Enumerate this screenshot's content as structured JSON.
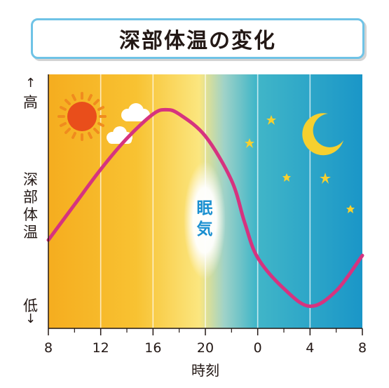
{
  "title": "深部体温の変化",
  "y_axis": {
    "high_label": "高",
    "low_label": "低",
    "label_chars": [
      "深",
      "部",
      "体",
      "温"
    ],
    "up_arrow": "↑",
    "down_arrow": "↓"
  },
  "x_axis": {
    "label": "時刻",
    "ticks": [
      "8",
      "12",
      "16",
      "20",
      "0",
      "4",
      "8"
    ]
  },
  "sleep_label": "眠\n気",
  "colors": {
    "day_orange": "#f6b221",
    "day_yellow": "#fbe67f",
    "night_teal": "#41b6c8",
    "night_blue": "#1a96c8",
    "curve": "#d6337f",
    "sun": "#e94e1b",
    "sun_rays": "#f08b1e",
    "moon_star": "#f6d02f",
    "sleep_text": "#1a8fd0"
  },
  "icons": [
    "sun-icon",
    "cloud-icon",
    "moon-icon",
    "star-icon"
  ],
  "chart_data": {
    "type": "line",
    "title": "深部体温の変化",
    "xlabel": "時刻",
    "ylabel": "深部体温",
    "x_ticks": [
      "8",
      "12",
      "16",
      "20",
      "0",
      "4",
      "8"
    ],
    "x": [
      8,
      10,
      12,
      14,
      16,
      17,
      18,
      20,
      22,
      23,
      24,
      26,
      28,
      30,
      32
    ],
    "y": [
      0.4,
      0.56,
      0.72,
      0.86,
      0.97,
      0.99,
      0.97,
      0.87,
      0.67,
      0.48,
      0.32,
      0.18,
      0.1,
      0.17,
      0.33
    ],
    "xlim": [
      8,
      32
    ],
    "ylim": [
      0,
      1.15
    ],
    "y_scale_labels": {
      "top": "高",
      "bottom": "低"
    },
    "grid": "vertical"
  }
}
